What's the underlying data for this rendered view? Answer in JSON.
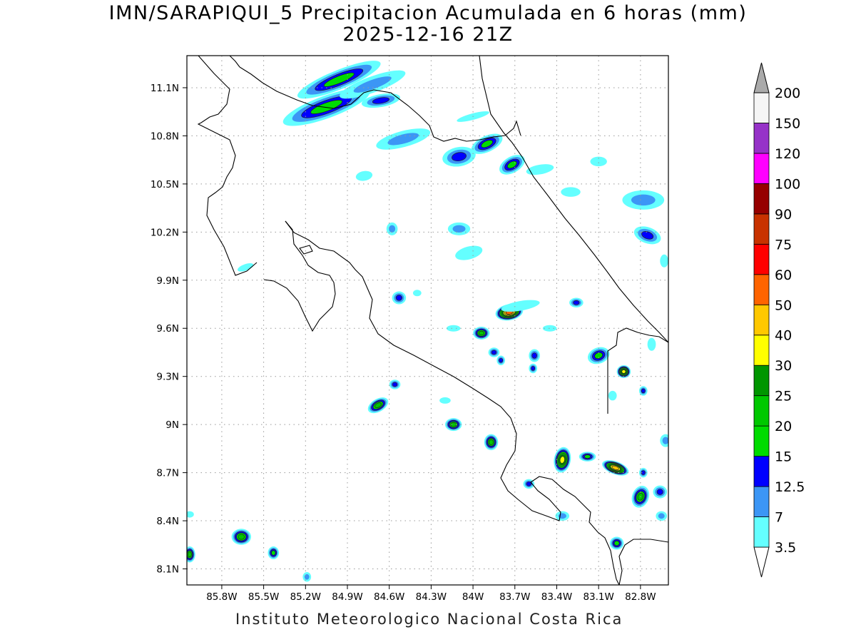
{
  "title_line1": "IMN/SARAPIQUI_5 Precipitacion Acumulada en 6 horas (mm)",
  "title_line2": "2025-12-16 21Z",
  "footer": "Instituto Meteorologico Nacional Costa Rica",
  "map": {
    "lon_range": [
      -86.05,
      -82.6
    ],
    "lat_range": [
      8.0,
      11.3
    ],
    "lat_ticks": [
      {
        "value": 11.1,
        "label": "11.1N"
      },
      {
        "value": 10.8,
        "label": "10.8N"
      },
      {
        "value": 10.5,
        "label": "10.5N"
      },
      {
        "value": 10.2,
        "label": "10.2N"
      },
      {
        "value": 9.9,
        "label": "9.9N"
      },
      {
        "value": 9.6,
        "label": "9.6N"
      },
      {
        "value": 9.3,
        "label": "9.3N"
      },
      {
        "value": 9.0,
        "label": "9N"
      },
      {
        "value": 8.7,
        "label": "8.7N"
      },
      {
        "value": 8.4,
        "label": "8.4N"
      },
      {
        "value": 8.1,
        "label": "8.1N"
      }
    ],
    "lon_ticks": [
      {
        "value": -85.8,
        "label": "85.8W"
      },
      {
        "value": -85.5,
        "label": "85.5W"
      },
      {
        "value": -85.2,
        "label": "85.2W"
      },
      {
        "value": -84.9,
        "label": "84.9W"
      },
      {
        "value": -84.6,
        "label": "84.6W"
      },
      {
        "value": -84.3,
        "label": "84.3W"
      },
      {
        "value": -84.0,
        "label": "84W"
      },
      {
        "value": -83.7,
        "label": "83.7W"
      },
      {
        "value": -83.4,
        "label": "83.4W"
      },
      {
        "value": -83.1,
        "label": "83.1W"
      },
      {
        "value": -82.8,
        "label": "82.8W"
      }
    ],
    "grid": "dotted"
  },
  "colorbar": {
    "levels": [
      "3.5",
      "7",
      "12.5",
      "15",
      "20",
      "25",
      "30",
      "40",
      "50",
      "60",
      "75",
      "90",
      "100",
      "120",
      "150",
      "200"
    ],
    "colors": [
      "#64ffff",
      "#3c96f5",
      "#0000ff",
      "#00dc00",
      "#00c800",
      "#009600",
      "#ffff00",
      "#ffc800",
      "#ff6400",
      "#ff0000",
      "#c83200",
      "#960000",
      "#ff00ff",
      "#9632c8",
      "#f5f5f5",
      "#aaaaaa"
    ]
  },
  "precip_cells": [
    {
      "lon": -84.96,
      "lat": 11.15,
      "rx": 0.32,
      "ry": 0.06,
      "angle": -22,
      "level": 3
    },
    {
      "lon": -85.05,
      "lat": 10.98,
      "rx": 0.33,
      "ry": 0.07,
      "angle": -20,
      "level": 3
    },
    {
      "lon": -84.66,
      "lat": 11.02,
      "rx": 0.14,
      "ry": 0.04,
      "angle": -10,
      "level": 2
    },
    {
      "lon": -84.72,
      "lat": 11.12,
      "rx": 0.25,
      "ry": 0.05,
      "angle": -20,
      "level": 1
    },
    {
      "lon": -84.5,
      "lat": 10.78,
      "rx": 0.2,
      "ry": 0.05,
      "angle": -15,
      "level": 1
    },
    {
      "lon": -84.1,
      "lat": 10.67,
      "rx": 0.12,
      "ry": 0.06,
      "angle": -10,
      "level": 2
    },
    {
      "lon": -83.9,
      "lat": 10.75,
      "rx": 0.12,
      "ry": 0.05,
      "angle": -25,
      "level": 3
    },
    {
      "lon": -83.72,
      "lat": 10.62,
      "rx": 0.1,
      "ry": 0.05,
      "angle": -30,
      "level": 3
    },
    {
      "lon": -82.75,
      "lat": 10.18,
      "rx": 0.1,
      "ry": 0.05,
      "angle": 20,
      "level": 2
    },
    {
      "lon": -82.78,
      "lat": 10.4,
      "rx": 0.15,
      "ry": 0.06,
      "angle": 0,
      "level": 1
    },
    {
      "lon": -84.1,
      "lat": 10.22,
      "rx": 0.08,
      "ry": 0.04,
      "angle": 0,
      "level": 1
    },
    {
      "lon": -84.03,
      "lat": 10.07,
      "rx": 0.1,
      "ry": 0.04,
      "angle": -15,
      "level": 0
    },
    {
      "lon": -84.53,
      "lat": 9.79,
      "rx": 0.05,
      "ry": 0.04,
      "angle": 0,
      "level": 2
    },
    {
      "lon": -83.74,
      "lat": 9.7,
      "rx": 0.1,
      "ry": 0.05,
      "angle": -10,
      "level": 8
    },
    {
      "lon": -83.94,
      "lat": 9.57,
      "rx": 0.06,
      "ry": 0.04,
      "angle": 0,
      "level": 4
    },
    {
      "lon": -83.56,
      "lat": 9.43,
      "rx": 0.04,
      "ry": 0.04,
      "angle": 0,
      "level": 2
    },
    {
      "lon": -83.1,
      "lat": 9.43,
      "rx": 0.08,
      "ry": 0.05,
      "angle": -20,
      "level": 3
    },
    {
      "lon": -83.26,
      "lat": 9.76,
      "rx": 0.05,
      "ry": 0.03,
      "angle": 0,
      "level": 2
    },
    {
      "lon": -82.92,
      "lat": 9.33,
      "rx": 0.05,
      "ry": 0.04,
      "angle": 0,
      "level": 6
    },
    {
      "lon": -84.68,
      "lat": 9.12,
      "rx": 0.08,
      "ry": 0.04,
      "angle": -30,
      "level": 4
    },
    {
      "lon": -84.56,
      "lat": 9.25,
      "rx": 0.04,
      "ry": 0.03,
      "angle": 0,
      "level": 2
    },
    {
      "lon": -84.14,
      "lat": 9.0,
      "rx": 0.06,
      "ry": 0.04,
      "angle": 0,
      "level": 4
    },
    {
      "lon": -83.87,
      "lat": 8.89,
      "rx": 0.05,
      "ry": 0.05,
      "angle": 0,
      "level": 4
    },
    {
      "lon": -83.36,
      "lat": 8.78,
      "rx": 0.06,
      "ry": 0.08,
      "angle": 10,
      "level": 6
    },
    {
      "lon": -83.18,
      "lat": 8.8,
      "rx": 0.06,
      "ry": 0.03,
      "angle": 0,
      "level": 3
    },
    {
      "lon": -82.98,
      "lat": 8.73,
      "rx": 0.1,
      "ry": 0.04,
      "angle": 20,
      "level": 7
    },
    {
      "lon": -82.8,
      "lat": 8.55,
      "rx": 0.06,
      "ry": 0.07,
      "angle": 20,
      "level": 4
    },
    {
      "lon": -82.66,
      "lat": 8.58,
      "rx": 0.05,
      "ry": 0.04,
      "angle": 0,
      "level": 2
    },
    {
      "lon": -85.66,
      "lat": 8.3,
      "rx": 0.07,
      "ry": 0.05,
      "angle": 0,
      "level": 4
    },
    {
      "lon": -85.43,
      "lat": 8.2,
      "rx": 0.04,
      "ry": 0.04,
      "angle": 0,
      "level": 3
    },
    {
      "lon": -86.03,
      "lat": 8.19,
      "rx": 0.04,
      "ry": 0.05,
      "angle": 0,
      "level": 4
    },
    {
      "lon": -82.97,
      "lat": 8.26,
      "rx": 0.05,
      "ry": 0.04,
      "angle": 0,
      "level": 3
    },
    {
      "lon": -83.36,
      "lat": 8.43,
      "rx": 0.05,
      "ry": 0.03,
      "angle": 0,
      "level": 1
    },
    {
      "lon": -82.78,
      "lat": 9.21,
      "rx": 0.03,
      "ry": 0.03,
      "angle": 0,
      "level": 2
    },
    {
      "lon": -85.19,
      "lat": 8.05,
      "rx": 0.03,
      "ry": 0.03,
      "angle": 0,
      "level": 1
    },
    {
      "lon": -82.62,
      "lat": 8.9,
      "rx": 0.04,
      "ry": 0.04,
      "angle": 0,
      "level": 1
    },
    {
      "lon": -84.78,
      "lat": 10.55,
      "rx": 0.06,
      "ry": 0.03,
      "angle": -10,
      "level": 0
    },
    {
      "lon": -84.58,
      "lat": 10.22,
      "rx": 0.04,
      "ry": 0.04,
      "angle": 0,
      "level": 1
    },
    {
      "lon": -83.52,
      "lat": 10.59,
      "rx": 0.1,
      "ry": 0.03,
      "angle": -10,
      "level": 0
    },
    {
      "lon": -83.1,
      "lat": 10.64,
      "rx": 0.06,
      "ry": 0.03,
      "angle": 0,
      "level": 0
    },
    {
      "lon": -83.3,
      "lat": 10.45,
      "rx": 0.07,
      "ry": 0.03,
      "angle": 0,
      "level": 0
    },
    {
      "lon": -85.63,
      "lat": 9.98,
      "rx": 0.06,
      "ry": 0.02,
      "angle": -20,
      "level": 0
    },
    {
      "lon": -83.66,
      "lat": 9.74,
      "rx": 0.14,
      "ry": 0.03,
      "angle": -10,
      "level": 0
    },
    {
      "lon": -84.14,
      "lat": 9.6,
      "rx": 0.05,
      "ry": 0.02,
      "angle": 0,
      "level": 0
    },
    {
      "lon": -83.85,
      "lat": 9.45,
      "rx": 0.04,
      "ry": 0.03,
      "angle": 0,
      "level": 2
    },
    {
      "lon": -83.8,
      "lat": 9.4,
      "rx": 0.03,
      "ry": 0.03,
      "angle": 0,
      "level": 2
    },
    {
      "lon": -83.57,
      "lat": 9.35,
      "rx": 0.03,
      "ry": 0.03,
      "angle": 0,
      "level": 2
    },
    {
      "lon": -83.6,
      "lat": 8.63,
      "rx": 0.04,
      "ry": 0.03,
      "angle": 0,
      "level": 2
    },
    {
      "lon": -84.2,
      "lat": 9.15,
      "rx": 0.04,
      "ry": 0.02,
      "angle": 0,
      "level": 0
    },
    {
      "lon": -82.72,
      "lat": 9.5,
      "rx": 0.03,
      "ry": 0.04,
      "angle": 0,
      "level": 0
    },
    {
      "lon": -82.65,
      "lat": 8.43,
      "rx": 0.04,
      "ry": 0.03,
      "angle": 0,
      "level": 1
    },
    {
      "lon": -82.78,
      "lat": 8.7,
      "rx": 0.03,
      "ry": 0.03,
      "angle": 0,
      "level": 2
    },
    {
      "lon": -83.0,
      "lat": 9.18,
      "rx": 0.03,
      "ry": 0.03,
      "angle": 0,
      "level": 0
    },
    {
      "lon": -82.63,
      "lat": 10.02,
      "rx": 0.03,
      "ry": 0.04,
      "angle": 0,
      "level": 0
    },
    {
      "lon": -86.03,
      "lat": 8.44,
      "rx": 0.03,
      "ry": 0.02,
      "angle": 0,
      "level": 0
    },
    {
      "lon": -84.4,
      "lat": 9.82,
      "rx": 0.03,
      "ry": 0.02,
      "angle": 0,
      "level": 0
    },
    {
      "lon": -84.0,
      "lat": 10.92,
      "rx": 0.12,
      "ry": 0.02,
      "angle": -15,
      "level": 0
    },
    {
      "lon": -83.45,
      "lat": 9.6,
      "rx": 0.05,
      "ry": 0.02,
      "angle": 0,
      "level": 0
    }
  ]
}
